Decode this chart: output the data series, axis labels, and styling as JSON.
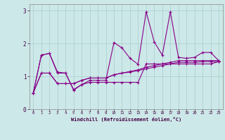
{
  "xlabel": "Windchill (Refroidissement éolien,°C)",
  "bg_color": "#cce8e8",
  "line_color": "#880088",
  "x_data": [
    0,
    1,
    2,
    3,
    4,
    5,
    6,
    7,
    8,
    9,
    10,
    11,
    12,
    13,
    14,
    15,
    16,
    17,
    18,
    19,
    20,
    21,
    22,
    23
  ],
  "line1": [
    0.5,
    1.65,
    1.7,
    1.1,
    1.1,
    0.6,
    0.75,
    0.82,
    0.82,
    0.82,
    0.82,
    0.82,
    0.82,
    0.82,
    1.38,
    1.38,
    1.38,
    1.38,
    1.38,
    1.38,
    1.38,
    1.38,
    1.38,
    1.45
  ],
  "line2": [
    0.5,
    1.65,
    1.7,
    1.13,
    1.1,
    0.58,
    0.75,
    0.88,
    0.88,
    0.88,
    2.03,
    1.87,
    1.55,
    1.37,
    2.97,
    2.05,
    1.65,
    2.97,
    1.58,
    1.55,
    1.58,
    1.73,
    1.73,
    1.48
  ],
  "line3": [
    0.5,
    1.1,
    1.1,
    0.78,
    0.78,
    0.78,
    0.88,
    0.95,
    0.95,
    0.95,
    1.05,
    1.1,
    1.15,
    1.2,
    1.28,
    1.33,
    1.38,
    1.43,
    1.48,
    1.48,
    1.48,
    1.48,
    1.48,
    1.48
  ],
  "line4": [
    0.5,
    1.1,
    1.1,
    0.78,
    0.78,
    0.78,
    0.88,
    0.95,
    0.95,
    0.95,
    1.05,
    1.1,
    1.13,
    1.18,
    1.23,
    1.28,
    1.33,
    1.38,
    1.43,
    1.43,
    1.43,
    1.45,
    1.45,
    1.45
  ],
  "ylim": [
    0,
    3.2
  ],
  "xlim": [
    -0.5,
    23.5
  ],
  "yticks": [
    0,
    1,
    2,
    3
  ],
  "xticks": [
    0,
    1,
    2,
    3,
    4,
    5,
    6,
    7,
    8,
    9,
    10,
    11,
    12,
    13,
    14,
    15,
    16,
    17,
    18,
    19,
    20,
    21,
    22,
    23
  ]
}
